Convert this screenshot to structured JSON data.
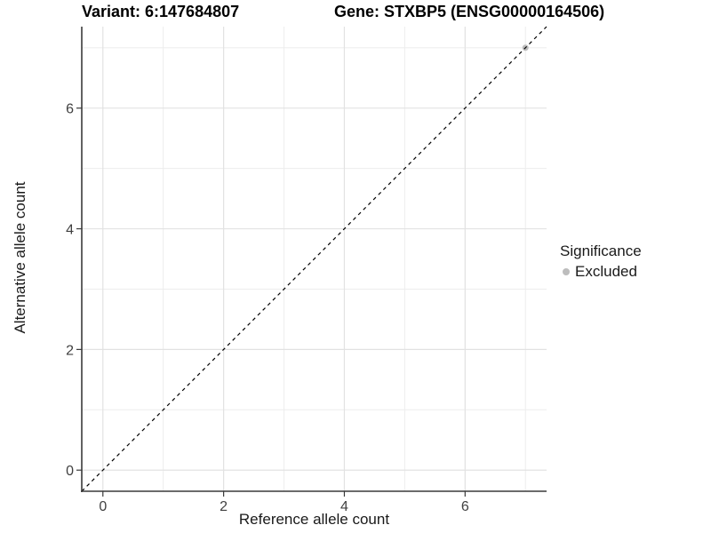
{
  "chart_data": {
    "type": "scatter",
    "title_left": "Variant: 6:147684807",
    "title_right": "Gene: STXBP5 (ENSG00000164506)",
    "xlabel": "Reference allele count",
    "ylabel": "Alternative allele count",
    "xlim": [
      -0.35,
      7.35
    ],
    "ylim": [
      -0.35,
      7.35
    ],
    "major_ticks": [
      0,
      2,
      4,
      6
    ],
    "minor_gridlines": [
      1,
      3,
      5,
      7
    ],
    "grid": "on",
    "points": [
      {
        "x": 7,
        "y": 7,
        "series": "Excluded"
      }
    ],
    "identity_line": {
      "style": "dashed",
      "equation": "y = x",
      "x1": -0.35,
      "y1": -0.35,
      "x2": 7.35,
      "y2": 7.35
    },
    "legend": {
      "title": "Significance",
      "position": "right",
      "items": [
        {
          "label": "Excluded",
          "color": "#bdbdbd"
        }
      ]
    },
    "colors": {
      "excluded_point": "#bdbdbd",
      "grid_major": "#e2e2e2",
      "grid_minor": "#ededed",
      "axis_line": "#3a3a3a",
      "tick_label": "#404040",
      "identity_line": "#000000",
      "background": "#ffffff"
    }
  }
}
